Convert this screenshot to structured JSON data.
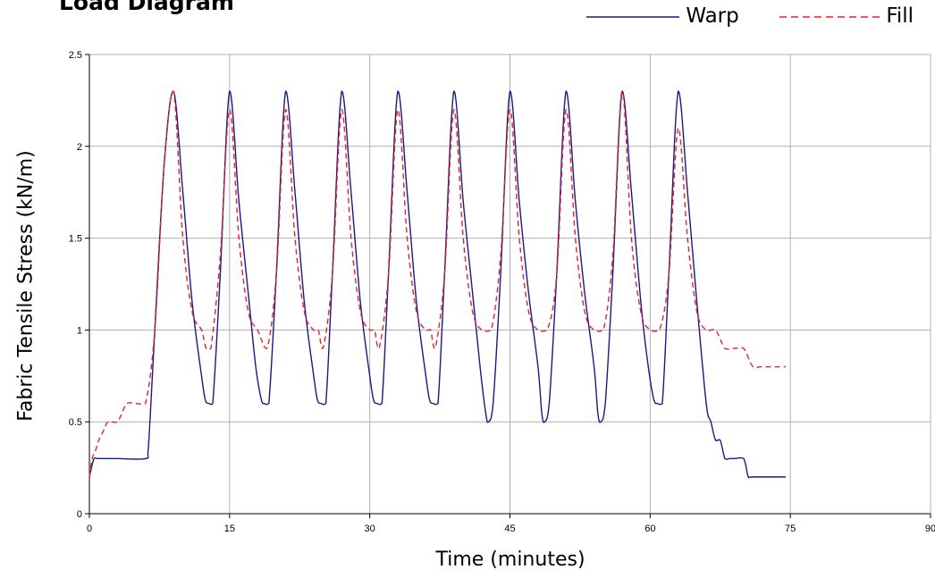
{
  "chart_data": {
    "type": "line",
    "title": "Load Diagram",
    "xlabel": "Time (minutes)",
    "ylabel": "Fabric Tensile Stress (kN/m)",
    "xlim": [
      0,
      90
    ],
    "ylim": [
      0,
      2.5
    ],
    "x_ticks": [
      "0",
      "15",
      "30",
      "45",
      "60",
      "75",
      "90"
    ],
    "y_ticks": [
      "0",
      "0.5",
      "1",
      "1.5",
      "2",
      "2.5"
    ],
    "grid": true,
    "legend_position": "top-right",
    "series": [
      {
        "name": "Warp",
        "color": "#1a1a80",
        "dash": "solid",
        "x": [
          0,
          0.5,
          1,
          3,
          6,
          6.3,
          7,
          8,
          9,
          10,
          11,
          12,
          12.4,
          12.8,
          13.2,
          14,
          15,
          16,
          17,
          17.8,
          18.4,
          18.7,
          19.2,
          20,
          21,
          22,
          23,
          24,
          24.4,
          24.8,
          25.3,
          26,
          27,
          28,
          29,
          30,
          30.4,
          30.8,
          31.3,
          32,
          33,
          34,
          35,
          36,
          36.4,
          36.8,
          37.3,
          38,
          39,
          40,
          41,
          41.8,
          42.4,
          42.7,
          43.2,
          44,
          45,
          46,
          47,
          48,
          48.4,
          48.7,
          49.2,
          50,
          51,
          52,
          53,
          54,
          54.4,
          54.7,
          55.2,
          56,
          57,
          58,
          59,
          59.8,
          60.4,
          60.8,
          61.3,
          62,
          63,
          64,
          65,
          66,
          66.5,
          67,
          67.5,
          68,
          68.5,
          69,
          70,
          70.5,
          71,
          74.5
        ],
        "y": [
          0.2,
          0.3,
          0.3,
          0.3,
          0.3,
          0.35,
          1.0,
          1.9,
          2.3,
          1.75,
          1.15,
          0.75,
          0.62,
          0.6,
          0.6,
          1.3,
          2.3,
          1.7,
          1.2,
          0.8,
          0.62,
          0.6,
          0.6,
          1.3,
          2.3,
          1.75,
          1.15,
          0.75,
          0.62,
          0.6,
          0.6,
          1.3,
          2.3,
          1.75,
          1.15,
          0.75,
          0.62,
          0.6,
          0.6,
          1.3,
          2.3,
          1.75,
          1.15,
          0.75,
          0.62,
          0.6,
          0.6,
          1.3,
          2.3,
          1.7,
          1.2,
          0.8,
          0.55,
          0.5,
          0.6,
          1.3,
          2.3,
          1.7,
          1.2,
          0.8,
          0.55,
          0.5,
          0.6,
          1.3,
          2.3,
          1.7,
          1.2,
          0.8,
          0.55,
          0.5,
          0.6,
          1.3,
          2.3,
          1.75,
          1.15,
          0.8,
          0.62,
          0.6,
          0.6,
          1.3,
          2.3,
          1.75,
          1.15,
          0.6,
          0.5,
          0.4,
          0.4,
          0.3,
          0.3,
          0.3,
          0.3,
          0.2,
          0.2,
          0.2
        ]
      },
      {
        "name": "Fill",
        "color": "#e8202a",
        "dash": "dashed",
        "x": [
          0,
          0.3,
          0.7,
          1,
          1.5,
          2,
          3,
          4,
          5,
          6,
          7,
          8,
          9,
          10,
          11,
          12,
          12.5,
          13,
          14,
          15,
          16,
          17,
          18,
          19,
          20,
          21,
          22,
          23,
          24,
          24.5,
          25,
          26,
          27,
          28,
          29,
          30,
          30.5,
          31,
          32,
          33,
          34,
          35,
          36,
          36.5,
          37,
          38,
          39,
          40,
          41,
          42,
          43,
          44,
          45,
          46,
          47,
          48,
          49,
          50,
          51,
          52,
          53,
          54,
          55,
          56,
          57,
          58,
          59,
          60,
          61,
          62,
          63,
          64,
          65,
          66,
          67,
          68,
          69,
          70,
          71,
          72,
          74.5
        ],
        "y": [
          0.2,
          0.3,
          0.35,
          0.4,
          0.45,
          0.5,
          0.5,
          0.6,
          0.6,
          0.6,
          1.0,
          1.9,
          2.3,
          1.5,
          1.1,
          1.0,
          0.9,
          0.9,
          1.4,
          2.2,
          1.5,
          1.1,
          1.0,
          0.9,
          1.3,
          2.2,
          1.5,
          1.1,
          1.0,
          1.0,
          0.9,
          1.3,
          2.2,
          1.5,
          1.1,
          1.0,
          1.0,
          0.9,
          1.3,
          2.2,
          1.5,
          1.1,
          1.0,
          1.0,
          0.9,
          1.3,
          2.2,
          1.5,
          1.1,
          1.0,
          1.0,
          1.4,
          2.2,
          1.5,
          1.1,
          1.0,
          1.0,
          1.3,
          2.2,
          1.5,
          1.1,
          1.0,
          1.0,
          1.4,
          2.3,
          1.5,
          1.1,
          1.0,
          1.0,
          1.3,
          2.1,
          1.5,
          1.1,
          1.0,
          1.0,
          0.9,
          0.9,
          0.9,
          0.8,
          0.8,
          0.8
        ]
      }
    ]
  }
}
